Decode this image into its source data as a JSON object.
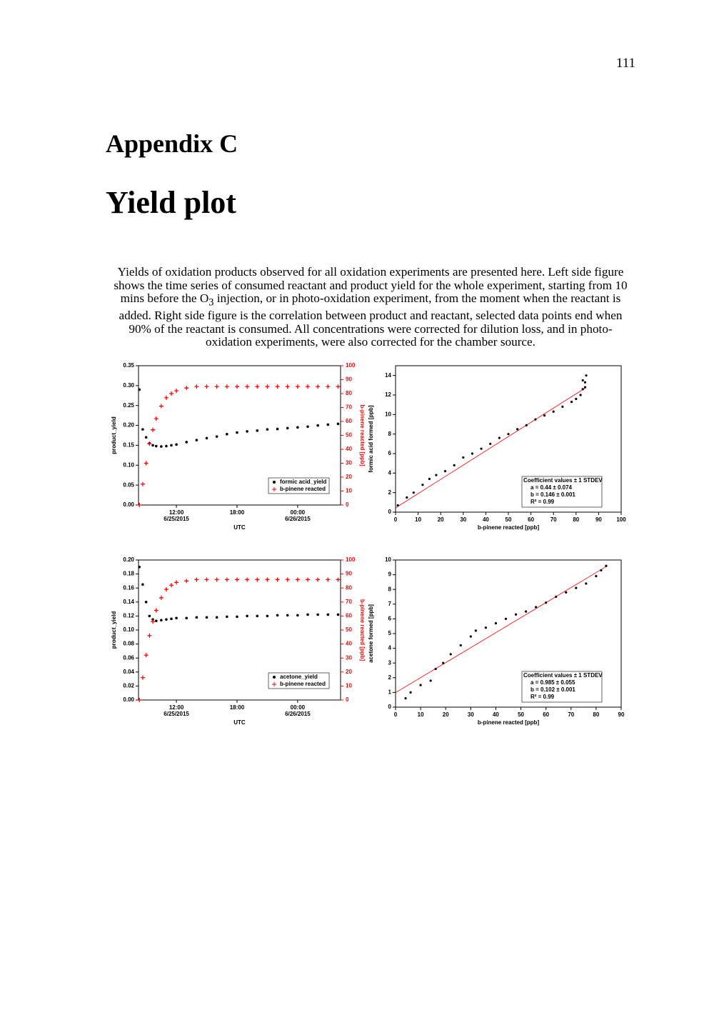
{
  "page_number": "111",
  "chapter": "Appendix C",
  "title": "Yield plot",
  "caption_before": "Yields of oxidation products observed for all oxidation experiments are presented here. Left side figure shows the time series of consumed reactant and product yield for the whole experiment, starting from 10 mins before the O",
  "caption_sub": "3",
  "caption_after": " injection, or in photo-oxidation experiment, from the moment when the reactant is added. Right side figure is the correlation between product and reactant, selected data points end when 90% of the reactant is consumed. All concentrations were corrected for dilution loss, and in photo-oxidation experiments, were also corrected for the chamber source.",
  "chart_data": [
    {
      "type": "timeseries",
      "xlabel": "UTC",
      "ylabel": "product_yield",
      "y2label": "b-pinene reacted [ppb]",
      "legend": "lower right",
      "x": [
        "2015-06-25T08:20",
        "2015-06-25T08:40",
        "2015-06-25T09:00",
        "2015-06-25T09:20",
        "2015-06-25T09:40",
        "2015-06-25T10:00",
        "2015-06-25T10:30",
        "2015-06-25T11:00",
        "2015-06-25T11:30",
        "2015-06-25T12:00",
        "2015-06-25T13:00",
        "2015-06-25T14:00",
        "2015-06-25T15:00",
        "2015-06-25T16:00",
        "2015-06-25T17:00",
        "2015-06-25T18:00",
        "2015-06-25T19:00",
        "2015-06-25T20:00",
        "2015-06-25T21:00",
        "2015-06-25T22:00",
        "2015-06-25T23:00",
        "2015-06-26T00:00",
        "2015-06-26T01:00",
        "2015-06-26T02:00",
        "2015-06-26T03:00",
        "2015-06-26T04:00"
      ],
      "series": [
        {
          "name": "formic acid_yield",
          "color": "#000000",
          "marker": "dot",
          "values": [
            0.29,
            0.19,
            0.17,
            0.155,
            0.15,
            0.148,
            0.147,
            0.148,
            0.15,
            0.152,
            0.158,
            0.163,
            0.168,
            0.172,
            0.178,
            0.182,
            0.185,
            0.187,
            0.19,
            0.191,
            0.193,
            0.195,
            0.197,
            0.2,
            0.202,
            0.204
          ]
        },
        {
          "name": "b-pinene reacted",
          "color": "#ff0000",
          "marker": "plus",
          "axis": "y2",
          "values": [
            0,
            15,
            30,
            44,
            54,
            62,
            71,
            77,
            80,
            82,
            84,
            85,
            85,
            85,
            85,
            85,
            85,
            85,
            85,
            85,
            85,
            85,
            85,
            85,
            85,
            85
          ]
        }
      ],
      "xlim": [
        "2015-06-25T08:15",
        "2015-06-26T04:15"
      ],
      "xticks": [
        {
          "value": "2015-06-25T12:00",
          "label": "12:00",
          "date": "6/25/2015"
        },
        {
          "value": "2015-06-25T18:00",
          "label": "18:00"
        },
        {
          "value": "2015-06-26T00:00",
          "label": "00:00",
          "date": "6/26/2015"
        }
      ],
      "ylim": [
        0,
        0.35
      ],
      "yticks": [
        {
          "value": 0,
          "label": "0.00"
        },
        {
          "value": 0.05,
          "label": "0.05"
        },
        {
          "value": 0.1,
          "label": "0.10"
        },
        {
          "value": 0.15,
          "label": "0.15"
        },
        {
          "value": 0.2,
          "label": "0.20"
        },
        {
          "value": 0.25,
          "label": "0.25"
        },
        {
          "value": 0.3,
          "label": "0.30"
        },
        {
          "value": 0.35,
          "label": "0.35"
        }
      ],
      "y2lim": [
        0,
        100
      ],
      "y2ticks": [
        0,
        10,
        20,
        30,
        40,
        50,
        60,
        70,
        80,
        90,
        100
      ]
    },
    {
      "type": "scatter",
      "xlabel": "b-pinene reacted [ppb]",
      "ylabel": "formic acid formed [ppb]",
      "color": "#000000",
      "fit_color": "#ff0000",
      "x": [
        1,
        5,
        8,
        12,
        15,
        18,
        22,
        26,
        30,
        34,
        38,
        42,
        46,
        50,
        54,
        58,
        62,
        66,
        70,
        74,
        78,
        80,
        82,
        83,
        84,
        84.5,
        84,
        83
      ],
      "values": [
        0.7,
        1.5,
        2,
        2.8,
        3.4,
        3.8,
        4.2,
        4.8,
        5.6,
        6,
        6.5,
        7,
        7.6,
        8,
        8.5,
        8.9,
        9.5,
        9.9,
        10.3,
        10.8,
        11.3,
        11.6,
        12,
        12.6,
        13.3,
        14,
        12.8,
        13.5
      ],
      "xlim": [
        0,
        100
      ],
      "xticks": [
        0,
        10,
        20,
        30,
        40,
        50,
        60,
        70,
        80,
        90,
        100
      ],
      "ylim": [
        0,
        15
      ],
      "yticks": [
        0,
        2,
        4,
        6,
        8,
        10,
        12,
        14
      ],
      "fit": {
        "a": 0.44,
        "b": 0.146,
        "title": "Coefficient values ± 1 STDEV",
        "a_label": "a   = 0.44 ± 0.074",
        "b_label": "b   = 0.146 ± 0.001",
        "r2_label": "R² = 0.99"
      }
    },
    {
      "type": "timeseries",
      "xlabel": "UTC",
      "ylabel": "product_yield",
      "y2label": "b-pinene reacted [ppb]",
      "legend": "lower right",
      "x": [
        "2015-06-25T08:20",
        "2015-06-25T08:40",
        "2015-06-25T09:00",
        "2015-06-25T09:20",
        "2015-06-25T09:40",
        "2015-06-25T10:00",
        "2015-06-25T10:30",
        "2015-06-25T11:00",
        "2015-06-25T11:30",
        "2015-06-25T12:00",
        "2015-06-25T13:00",
        "2015-06-25T14:00",
        "2015-06-25T15:00",
        "2015-06-25T16:00",
        "2015-06-25T17:00",
        "2015-06-25T18:00",
        "2015-06-25T19:00",
        "2015-06-25T20:00",
        "2015-06-25T21:00",
        "2015-06-25T22:00",
        "2015-06-25T23:00",
        "2015-06-26T00:00",
        "2015-06-26T01:00",
        "2015-06-26T02:00",
        "2015-06-26T03:00",
        "2015-06-26T04:00"
      ],
      "series": [
        {
          "name": "acetone_yield",
          "color": "#000000",
          "marker": "dot",
          "values": [
            0.19,
            0.165,
            0.14,
            0.12,
            0.115,
            0.113,
            0.114,
            0.115,
            0.116,
            0.117,
            0.117,
            0.118,
            0.118,
            0.118,
            0.119,
            0.119,
            0.12,
            0.12,
            0.12,
            0.121,
            0.121,
            0.121,
            0.122,
            0.122,
            0.122,
            0.122
          ]
        },
        {
          "name": "b-pinene reacted",
          "color": "#ff0000",
          "marker": "plus",
          "axis": "y2",
          "values": [
            0,
            16,
            32,
            46,
            56,
            64,
            73,
            79,
            82,
            84,
            85,
            86,
            86,
            86,
            86,
            86,
            86,
            86,
            86,
            86,
            86,
            86,
            86,
            86,
            86,
            86
          ]
        }
      ],
      "xlim": [
        "2015-06-25T08:15",
        "2015-06-26T04:15"
      ],
      "xticks": [
        {
          "value": "2015-06-25T12:00",
          "label": "12:00",
          "date": "6/25/2015"
        },
        {
          "value": "2015-06-25T18:00",
          "label": "18:00"
        },
        {
          "value": "2015-06-26T00:00",
          "label": "00:00",
          "date": "6/26/2015"
        }
      ],
      "ylim": [
        0,
        0.2
      ],
      "yticks": [
        {
          "value": 0,
          "label": "0.00"
        },
        {
          "value": 0.02,
          "label": "0.02"
        },
        {
          "value": 0.04,
          "label": "0.04"
        },
        {
          "value": 0.06,
          "label": "0.06"
        },
        {
          "value": 0.08,
          "label": "0.08"
        },
        {
          "value": 0.1,
          "label": "0.10"
        },
        {
          "value": 0.12,
          "label": "0.12"
        },
        {
          "value": 0.14,
          "label": "0.14"
        },
        {
          "value": 0.16,
          "label": "0.16"
        },
        {
          "value": 0.18,
          "label": "0.18"
        },
        {
          "value": 0.2,
          "label": "0.20"
        }
      ],
      "y2lim": [
        0,
        100
      ],
      "y2ticks": [
        0,
        10,
        20,
        30,
        40,
        50,
        60,
        70,
        80,
        90,
        100
      ]
    },
    {
      "type": "scatter",
      "xlabel": "b-pinene reacted [ppb]",
      "ylabel": "acetone formed [ppb]",
      "color": "#000000",
      "fit_color": "#ff0000",
      "x": [
        4,
        6,
        10,
        14,
        16,
        19,
        22,
        26,
        30,
        32,
        36,
        40,
        44,
        48,
        52,
        56,
        60,
        64,
        68,
        72,
        76,
        80,
        82,
        84
      ],
      "values": [
        0.6,
        1,
        1.5,
        1.8,
        2.6,
        3,
        3.6,
        4.2,
        4.8,
        5.2,
        5.4,
        5.7,
        6,
        6.3,
        6.5,
        6.8,
        7.1,
        7.5,
        7.8,
        8.1,
        8.4,
        8.9,
        9.3,
        9.6
      ],
      "xlim": [
        0,
        90
      ],
      "xticks": [
        0,
        10,
        20,
        30,
        40,
        50,
        60,
        70,
        80,
        90
      ],
      "ylim": [
        0,
        10
      ],
      "yticks": [
        0,
        1,
        2,
        3,
        4,
        5,
        6,
        7,
        8,
        9,
        10
      ],
      "fit": {
        "a": 0.985,
        "b": 0.102,
        "title": "Coefficient values ± 1 STDEV",
        "a_label": "a   = 0.985 ± 0.055",
        "b_label": "b   = 0.102 ± 0.001",
        "r2_label": "R² = 0.99"
      }
    }
  ]
}
